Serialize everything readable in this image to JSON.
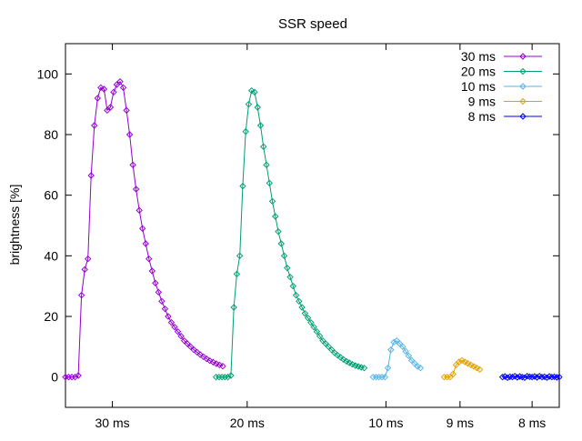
{
  "chart_data": {
    "type": "line",
    "title": "SSR speed",
    "xlabel": "",
    "ylabel": "brightness [%]",
    "ylim": [
      -10,
      110
    ],
    "xlim": [
      0,
      100
    ],
    "yticks": [
      0,
      20,
      40,
      60,
      80,
      100
    ],
    "xticks": [
      {
        "x": 9.5,
        "label": "30 ms"
      },
      {
        "x": 36.8,
        "label": "20 ms"
      },
      {
        "x": 64.9,
        "label": "10 ms"
      },
      {
        "x": 79.9,
        "label": "9 ms"
      },
      {
        "x": 94.5,
        "label": "8 ms"
      }
    ],
    "grid": false,
    "legend": "top-right",
    "series": [
      {
        "name": "30 ms",
        "color": "#9400d3",
        "x": [
          0,
          0.65,
          1.3,
          1.95,
          2.6,
          3.25,
          3.9,
          4.55,
          5.2,
          5.85,
          6.5,
          7.15,
          7.8,
          8.45,
          9.1,
          9.75,
          10.4,
          11.05,
          11.7,
          12.35,
          13.0,
          13.65,
          14.3,
          14.95,
          15.6,
          16.25,
          16.9,
          17.55,
          18.2,
          18.85,
          19.5,
          20.15,
          20.8,
          21.45,
          22.1,
          22.75,
          23.4,
          24.05,
          24.7,
          25.35,
          26.0,
          26.65,
          27.3,
          27.95,
          28.6,
          29.25,
          29.9,
          30.55,
          31.2,
          31.85
        ],
        "y": [
          0,
          0,
          0,
          0,
          0.5,
          27,
          35.5,
          39,
          66.5,
          83,
          92,
          95.5,
          95,
          88,
          89,
          94,
          96.5,
          97.5,
          95.5,
          88,
          80,
          70,
          62,
          55,
          49,
          44,
          39,
          35,
          31,
          28,
          25,
          22.5,
          20,
          18,
          16.5,
          15,
          13.5,
          12,
          11,
          10,
          9,
          8.2,
          7.4,
          6.7,
          6,
          5.4,
          4.9,
          4.4,
          4,
          3.6
        ]
      },
      {
        "name": "20 ms",
        "color": "#009e73",
        "x": [
          30.5,
          31.1,
          31.7,
          32.3,
          32.9,
          33.5,
          34.1,
          34.7,
          35.3,
          35.9,
          36.5,
          37.1,
          37.7,
          38.3,
          38.9,
          39.5,
          40.1,
          40.7,
          41.3,
          41.9,
          42.5,
          43.1,
          43.7,
          44.3,
          44.9,
          45.5,
          46.1,
          46.7,
          47.3,
          47.9,
          48.5,
          49.1,
          49.7,
          50.3,
          50.9,
          51.5,
          52.1,
          52.7,
          53.3,
          53.9,
          54.5,
          55.1,
          55.7,
          56.3,
          56.9,
          57.5,
          58.1,
          58.7,
          59.3,
          59.9,
          60.5
        ],
        "y": [
          0,
          0,
          0,
          0,
          0,
          0.5,
          23,
          34,
          40,
          63,
          81,
          90,
          94.5,
          94,
          89,
          83,
          76,
          70,
          64,
          58,
          53,
          48,
          44,
          40,
          36,
          33,
          30,
          27,
          25,
          23,
          21,
          19.5,
          18,
          16.5,
          15,
          13.5,
          12,
          11,
          10,
          9,
          8,
          7.2,
          6.5,
          5.8,
          5.2,
          4.7,
          4.2,
          3.8,
          3.5,
          3.2,
          3
        ]
      },
      {
        "name": "10 ms",
        "color": "#56b4e9",
        "x": [
          62.3,
          62.9,
          63.5,
          64.1,
          64.7,
          65.3,
          65.9,
          66.5,
          67.1,
          67.7,
          68.3,
          68.9,
          69.5,
          70.1,
          70.7,
          71.3,
          71.9
        ],
        "y": [
          0,
          0,
          0,
          0,
          0,
          3,
          9,
          11.5,
          12,
          11,
          10,
          8.5,
          7,
          5.5,
          4.5,
          3.5,
          3
        ]
      },
      {
        "name": "9 ms",
        "color": "#e69f00",
        "x": [
          76.7,
          77.3,
          77.9,
          78.5,
          79.1,
          79.7,
          80.3,
          80.9,
          81.5,
          82.1,
          82.7,
          83.3,
          83.9
        ],
        "y": [
          0,
          0,
          0,
          1,
          4,
          5,
          5.5,
          5,
          4.5,
          4,
          3.5,
          3,
          2.5
        ]
      },
      {
        "name": "8 ms",
        "color": "#0000ff",
        "x": [
          88.5,
          89.0,
          89.5,
          90.0,
          90.5,
          91.0,
          91.5,
          92.0,
          92.5,
          93.0,
          93.5,
          94.0,
          94.5,
          95.0,
          95.5,
          96.0,
          96.5,
          97.0,
          97.5,
          98.0,
          98.5,
          99.0,
          99.5,
          100.0
        ],
        "y": [
          0,
          0.2,
          -0.2,
          0.1,
          0,
          0.3,
          -0.1,
          0.2,
          0,
          -0.2,
          0.3,
          0.1,
          0,
          0.2,
          -0.1,
          0.3,
          0,
          0.1,
          -0.2,
          0.2,
          0,
          0.1,
          -0.1,
          0
        ]
      }
    ]
  }
}
